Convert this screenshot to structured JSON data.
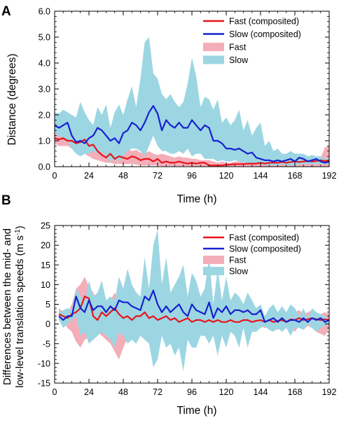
{
  "chart_data": [
    {
      "type": "area",
      "panel_label": "A",
      "xlabel": "Time (h)",
      "ylabel": "Distance (degrees)",
      "xlim": [
        0,
        192
      ],
      "ylim": [
        0,
        6
      ],
      "x_ticks": [
        0,
        24,
        48,
        72,
        96,
        120,
        144,
        168,
        192
      ],
      "y_ticks": [
        0,
        1,
        2,
        3,
        4,
        5,
        6
      ],
      "y_tick_labels": [
        "0.0",
        "1.0",
        "2.0",
        "3.0",
        "4.0",
        "5.0",
        "6.0"
      ],
      "grid": false,
      "legend_position": "top-right",
      "legend": [
        "Fast (composited)",
        "Slow (composited)",
        "Fast",
        "Slow"
      ],
      "x": [
        0,
        3,
        6,
        9,
        12,
        15,
        18,
        21,
        24,
        27,
        30,
        33,
        36,
        39,
        42,
        45,
        48,
        51,
        54,
        57,
        60,
        63,
        66,
        69,
        72,
        75,
        78,
        81,
        84,
        87,
        90,
        93,
        96,
        99,
        102,
        105,
        108,
        111,
        114,
        117,
        120,
        123,
        126,
        129,
        132,
        135,
        138,
        141,
        144,
        147,
        150,
        153,
        156,
        159,
        162,
        165,
        168,
        171,
        174,
        177,
        180,
        183,
        186,
        189,
        192
      ],
      "series": [
        {
          "name": "Fast (composited)",
          "kind": "line",
          "color": "#e8141b",
          "values": [
            1.1,
            1.05,
            1.1,
            1.0,
            1.0,
            0.9,
            0.95,
            1.05,
            0.8,
            0.85,
            0.6,
            0.45,
            0.35,
            0.5,
            0.3,
            0.4,
            0.35,
            0.3,
            0.4,
            0.35,
            0.25,
            0.3,
            0.3,
            0.2,
            0.3,
            0.15,
            0.2,
            0.15,
            0.15,
            0.2,
            0.15,
            0.12,
            0.15,
            0.12,
            0.15,
            0.15,
            0.05,
            0.05,
            0.05,
            0.05,
            0.07,
            0.08,
            0.1,
            0.1,
            0.1,
            0.12,
            0.12,
            0.12,
            0.15,
            0.12,
            0.15,
            0.15,
            0.15,
            0.18,
            0.15,
            0.18,
            0.2,
            0.18,
            0.2,
            0.22,
            0.2,
            0.22,
            0.25,
            0.22,
            0.25
          ]
        },
        {
          "name": "Slow (composited)",
          "kind": "line",
          "color": "#1621d0",
          "values": [
            1.6,
            1.5,
            1.6,
            1.7,
            1.2,
            0.95,
            1.0,
            0.9,
            1.1,
            1.2,
            1.5,
            1.4,
            1.2,
            1.0,
            1.1,
            0.9,
            1.3,
            1.4,
            1.7,
            1.6,
            1.4,
            1.7,
            2.1,
            2.35,
            2.05,
            1.4,
            1.8,
            1.6,
            1.5,
            1.7,
            1.5,
            1.5,
            1.8,
            1.6,
            1.4,
            1.6,
            1.5,
            1.0,
            1.0,
            0.9,
            0.7,
            0.7,
            0.65,
            0.7,
            0.6,
            0.5,
            0.55,
            0.35,
            0.3,
            0.25,
            0.25,
            0.2,
            0.25,
            0.2,
            0.25,
            0.3,
            0.2,
            0.35,
            0.3,
            0.2,
            0.25,
            0.3,
            0.2,
            0.15,
            0.2
          ]
        },
        {
          "name": "Fast",
          "kind": "band",
          "color": "#f4aeb9",
          "upper": [
            1.3,
            1.3,
            1.4,
            1.3,
            1.3,
            1.6,
            1.5,
            1.3,
            1.5,
            1.2,
            1.1,
            0.9,
            0.9,
            0.7,
            0.8,
            0.6,
            0.6,
            0.7,
            0.6,
            0.65,
            0.55,
            0.5,
            0.6,
            0.5,
            0.45,
            0.5,
            0.45,
            0.4,
            0.35,
            0.4,
            0.35,
            0.35,
            0.3,
            0.3,
            0.25,
            0.25,
            0.25,
            0.2,
            0.15,
            0.2,
            0.15,
            0.15,
            0.2,
            0.2,
            0.2,
            0.25,
            0.2,
            0.25,
            0.25,
            0.3,
            0.25,
            0.3,
            0.3,
            0.25,
            0.35,
            0.3,
            0.3,
            0.35,
            0.3,
            0.4,
            0.3,
            0.4,
            0.35,
            0.75,
            0.8
          ],
          "lower": [
            0.9,
            0.8,
            0.8,
            0.8,
            0.7,
            0.5,
            0.5,
            0.5,
            0.4,
            0.3,
            0.25,
            0.2,
            0.15,
            0.15,
            0.1,
            0.1,
            0.1,
            0.1,
            0.1,
            0.08,
            0.05,
            0.05,
            0.05,
            0.05,
            0.05,
            0.02,
            0.02,
            0.02,
            0.02,
            0.02,
            0.02,
            0.02,
            0.02,
            0.0,
            0.0,
            0.0,
            0.0,
            0.0,
            0.0,
            0.0,
            0.0,
            0.0,
            0.0,
            0.0,
            0.0,
            0.0,
            0.0,
            0.0,
            0.0,
            0.0,
            0.0,
            0.0,
            0.0,
            0.0,
            0.0,
            0.0,
            0.0,
            0.0,
            0.0,
            0.0,
            0.0,
            0.0,
            0.0,
            0.0,
            0.0
          ]
        },
        {
          "name": "Slow",
          "kind": "band",
          "color": "#9cd6e3",
          "upper": [
            2.1,
            2.05,
            2.2,
            2.1,
            2.0,
            1.9,
            2.5,
            2.1,
            1.8,
            1.6,
            2.3,
            2.0,
            2.4,
            1.5,
            2.1,
            2.4,
            2.0,
            2.6,
            3.1,
            2.3,
            3.4,
            4.8,
            5.0,
            3.6,
            3.4,
            2.8,
            2.6,
            2.8,
            2.5,
            2.3,
            2.5,
            3.2,
            4.2,
            3.5,
            2.3,
            2.7,
            2.6,
            2.2,
            2.6,
            1.7,
            1.9,
            1.6,
            1.8,
            2.2,
            1.4,
            1.8,
            1.2,
            1.5,
            1.7,
            0.8,
            1.0,
            0.6,
            0.7,
            0.5,
            0.5,
            0.6,
            0.5,
            0.5,
            0.5,
            0.4,
            0.45,
            0.4,
            0.4,
            0.3,
            0.35
          ],
          "lower": [
            1.3,
            1.2,
            1.1,
            1.0,
            0.7,
            0.5,
            0.4,
            0.5,
            0.5,
            0.6,
            0.5,
            0.6,
            0.4,
            0.2,
            0.3,
            0.2,
            0.4,
            0.6,
            0.7,
            0.7,
            0.6,
            0.4,
            0.8,
            1.2,
            0.8,
            0.6,
            0.6,
            0.5,
            0.5,
            0.6,
            0.5,
            0.7,
            0.4,
            0.5,
            0.5,
            0.3,
            0.3,
            0.3,
            0.2,
            0.25,
            0.2,
            0.2,
            0.25,
            0.2,
            0.15,
            0.1,
            0.1,
            0.1,
            0.1,
            0.08,
            0.05,
            0.05,
            0.05,
            0.1,
            0.05,
            0.05,
            0.05,
            0.1,
            0.1,
            0.1,
            0.1,
            0.1,
            0.1,
            0.1,
            0.1
          ]
        }
      ]
    },
    {
      "type": "area",
      "panel_label": "B",
      "xlabel": "Time (h)",
      "ylabel_line1": "Differences between the mid- and",
      "ylabel_line2_text": "low-level translation speeds (m s",
      "ylabel_line2_sup": "-1",
      "ylabel_line2_close": ")",
      "xlim": [
        0,
        192
      ],
      "ylim": [
        -15,
        25
      ],
      "x_ticks": [
        0,
        24,
        48,
        72,
        96,
        120,
        144,
        168,
        192
      ],
      "y_ticks": [
        -15,
        -10,
        -5,
        0,
        5,
        10,
        15,
        20,
        25
      ],
      "grid": false,
      "legend_position": "top-right",
      "legend": [
        "Fast (composited)",
        "Slow (composited)",
        "Fast",
        "Slow"
      ],
      "x": [
        3,
        6,
        9,
        12,
        15,
        18,
        21,
        24,
        27,
        30,
        33,
        36,
        39,
        42,
        45,
        48,
        51,
        54,
        57,
        60,
        63,
        66,
        69,
        72,
        75,
        78,
        81,
        84,
        87,
        90,
        93,
        96,
        99,
        102,
        105,
        108,
        111,
        114,
        117,
        120,
        123,
        126,
        129,
        132,
        135,
        138,
        141,
        144,
        147,
        150,
        153,
        156,
        159,
        162,
        165,
        168,
        171,
        174,
        177,
        180,
        183,
        186,
        189,
        192
      ],
      "series": [
        {
          "name": "Fast (composited)",
          "kind": "line",
          "color": "#e8141b",
          "values": [
            2.5,
            2.0,
            1.5,
            2.5,
            3.0,
            4.0,
            7.0,
            6.5,
            2.0,
            1.0,
            3.0,
            2.0,
            3.0,
            4.0,
            2.5,
            1.5,
            2.0,
            1.0,
            2.0,
            2.0,
            3.0,
            1.5,
            2.0,
            1.0,
            1.5,
            2.0,
            1.0,
            1.5,
            0.5,
            1.0,
            1.5,
            0.5,
            1.0,
            1.0,
            0.5,
            1.0,
            0.5,
            1.0,
            0.5,
            0.5,
            1.0,
            0.5,
            0.5,
            1.0,
            1.0,
            0.5,
            0.8,
            1.0,
            0.5,
            1.0,
            0.5,
            0.8,
            1.0,
            0.5,
            1.2,
            1.0,
            1.5,
            1.0,
            1.2,
            1.5,
            1.2,
            1.0,
            1.2,
            1.0
          ]
        },
        {
          "name": "Slow (composited)",
          "kind": "line",
          "color": "#1621d0",
          "values": [
            2.0,
            1.0,
            2.0,
            2.0,
            7.0,
            4.0,
            3.0,
            6.0,
            3.5,
            4.5,
            4.5,
            3.0,
            4.5,
            3.5,
            6.0,
            5.5,
            5.5,
            4.5,
            4.0,
            3.5,
            7.0,
            6.0,
            8.5,
            5.0,
            3.0,
            4.5,
            3.0,
            4.0,
            5.0,
            3.0,
            2.0,
            5.0,
            3.5,
            3.0,
            2.5,
            5.5,
            1.5,
            4.0,
            3.0,
            4.5,
            2.5,
            3.5,
            3.5,
            3.0,
            3.5,
            2.5,
            2.5,
            3.5,
            0.5,
            1.0,
            1.5,
            0.5,
            1.5,
            0.5,
            1.0,
            1.0,
            0.5,
            1.5,
            0.5,
            1.5,
            1.0,
            1.5,
            0.5,
            1.0
          ]
        },
        {
          "name": "Fast",
          "kind": "band",
          "color": "#f4aeb9",
          "upper": [
            4.0,
            3.0,
            3.0,
            5.0,
            9.0,
            10.0,
            12.0,
            9.5,
            8.0,
            5.0,
            6.0,
            5.0,
            6.0,
            8.0,
            5.0,
            4.0,
            6.0,
            4.0,
            5.0,
            5.0,
            6.0,
            4.0,
            5.0,
            3.5,
            4.0,
            4.5,
            3.0,
            3.5,
            2.5,
            3.0,
            4.0,
            2.0,
            3.0,
            3.0,
            2.5,
            3.0,
            2.0,
            3.0,
            2.0,
            2.0,
            3.0,
            2.0,
            2.0,
            3.0,
            3.0,
            2.0,
            2.5,
            3.0,
            2.0,
            3.0,
            2.0,
            2.5,
            3.0,
            2.0,
            3.0,
            3.0,
            3.5,
            2.5,
            3.0,
            3.5,
            3.0,
            2.5,
            3.0,
            2.5
          ],
          "lower": [
            1.0,
            0.5,
            -1.0,
            -2.0,
            -4.5,
            -6.0,
            -4.0,
            -3.5,
            -3.0,
            -2.0,
            -3.0,
            -4.0,
            -5.0,
            -7.0,
            -9.0,
            -6.0,
            -3.5,
            -3.0,
            -2.0,
            -1.5,
            -2.5,
            -2.0,
            -1.0,
            -1.5,
            -2.0,
            -1.0,
            -1.5,
            -0.5,
            -1.5,
            -1.0,
            -1.0,
            -2.0,
            -1.5,
            -1.0,
            -1.5,
            -1.0,
            -1.5,
            -0.5,
            -1.0,
            -1.5,
            -1.0,
            -1.0,
            -1.5,
            -1.0,
            -1.5,
            -1.0,
            -1.0,
            -0.5,
            -1.0,
            -0.5,
            -1.0,
            -1.5,
            -0.5,
            -1.0,
            -0.5,
            -2.0,
            -0.5,
            -1.5,
            -0.5,
            -1.0,
            -2.0,
            -2.5,
            -3.0,
            -1.0
          ]
        },
        {
          "name": "Slow",
          "kind": "band",
          "color": "#9cd6e3",
          "upper": [
            3.0,
            3.5,
            4.0,
            3.5,
            9.0,
            7.0,
            5.5,
            11.0,
            7.0,
            8.0,
            11.0,
            6.0,
            7.0,
            6.0,
            12.0,
            9.0,
            14.0,
            10.0,
            8.0,
            7.0,
            17.0,
            9.0,
            20.0,
            24.0,
            10.0,
            17.0,
            8.0,
            10.0,
            12.0,
            15.0,
            7.0,
            13.0,
            11.0,
            7.0,
            9.0,
            17.0,
            5.0,
            14.0,
            6.0,
            12.0,
            6.0,
            8.0,
            7.0,
            5.0,
            8.0,
            6.0,
            4.0,
            5.0,
            2.0,
            4.0,
            5.0,
            3.0,
            4.5,
            3.0,
            5.0,
            4.0,
            2.0,
            4.0,
            1.5,
            4.0,
            3.0,
            2.5,
            2.0,
            1.0
          ],
          "lower": [
            1.0,
            -1.0,
            0.0,
            1.0,
            2.0,
            -3.0,
            -2.0,
            -5.0,
            -4.0,
            -3.0,
            -2.0,
            -3.0,
            -4.0,
            -6.0,
            -2.0,
            -3.0,
            -5.0,
            -4.0,
            -5.0,
            -3.0,
            -4.0,
            -5.0,
            -11.0,
            -9.0,
            -3.0,
            -6.0,
            -5.0,
            -8.0,
            -6.0,
            -12.0,
            -4.0,
            -6.0,
            -6.0,
            -3.0,
            -3.0,
            -5.0,
            -3.0,
            -8.0,
            -3.0,
            -6.0,
            -2.0,
            -3.0,
            -6.0,
            -1.0,
            -6.0,
            -2.0,
            -2.0,
            -1.0,
            -0.5,
            -1.5,
            -2.0,
            -1.0,
            -2.0,
            -1.0,
            -3.0,
            -1.0,
            -1.0,
            -1.5,
            0.0,
            -1.0,
            -2.0,
            -1.0,
            -0.5,
            0.0
          ]
        }
      ]
    }
  ]
}
